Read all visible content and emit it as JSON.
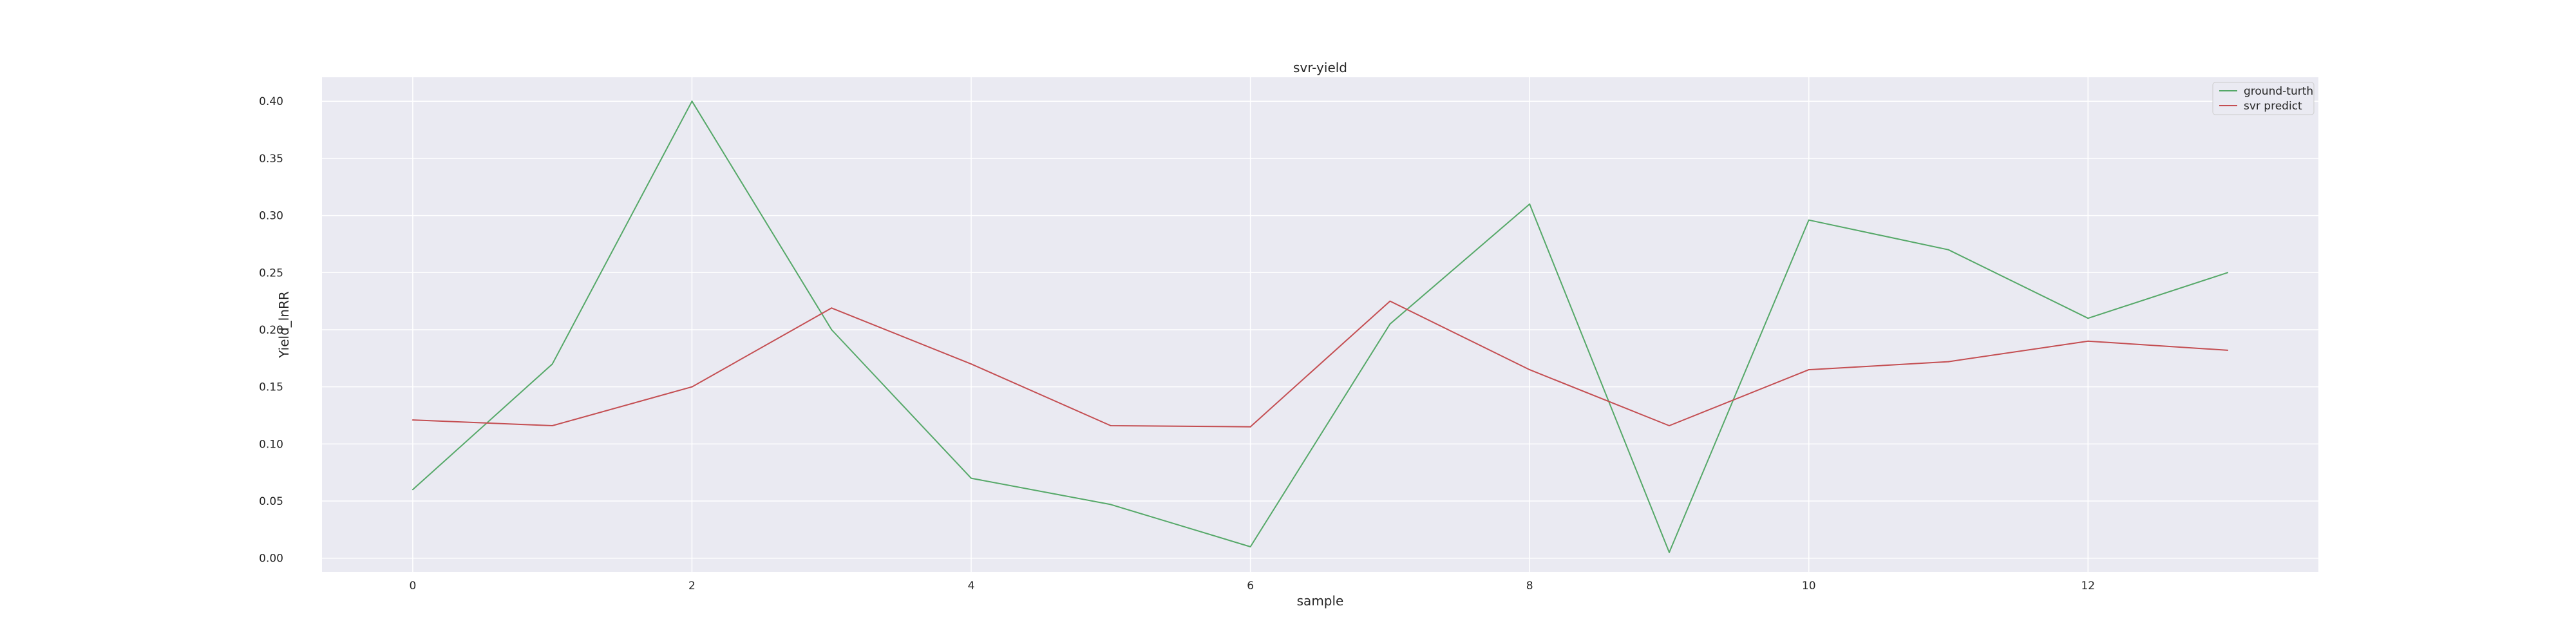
{
  "chart_data": {
    "type": "line",
    "title": "svr-yield",
    "xlabel": "sample",
    "ylabel": "Yield_lnRR",
    "x": [
      0,
      1,
      2,
      3,
      4,
      5,
      6,
      7,
      8,
      9,
      10,
      11,
      12,
      13
    ],
    "xlim": [
      -0.65,
      13.65
    ],
    "ylim": [
      -0.012,
      0.421
    ],
    "xticks": [
      0,
      2,
      4,
      6,
      8,
      10,
      12
    ],
    "yticks": [
      0.0,
      0.05,
      0.1,
      0.15,
      0.2,
      0.25,
      0.3,
      0.35,
      0.4
    ],
    "ytick_labels": [
      "0.00",
      "0.05",
      "0.10",
      "0.15",
      "0.20",
      "0.25",
      "0.30",
      "0.35",
      "0.40"
    ],
    "grid": true,
    "legend_position": "top-right",
    "series": [
      {
        "name": "ground-turth",
        "color": "#55a868",
        "values": [
          0.06,
          0.17,
          0.4,
          0.2,
          0.07,
          0.047,
          0.01,
          0.205,
          0.31,
          0.005,
          0.296,
          0.27,
          0.21,
          0.25
        ]
      },
      {
        "name": "svr predict",
        "color": "#c44e52",
        "values": [
          0.121,
          0.116,
          0.15,
          0.219,
          0.17,
          0.116,
          0.115,
          0.225,
          0.165,
          0.116,
          0.165,
          0.172,
          0.19,
          0.182
        ]
      }
    ]
  }
}
